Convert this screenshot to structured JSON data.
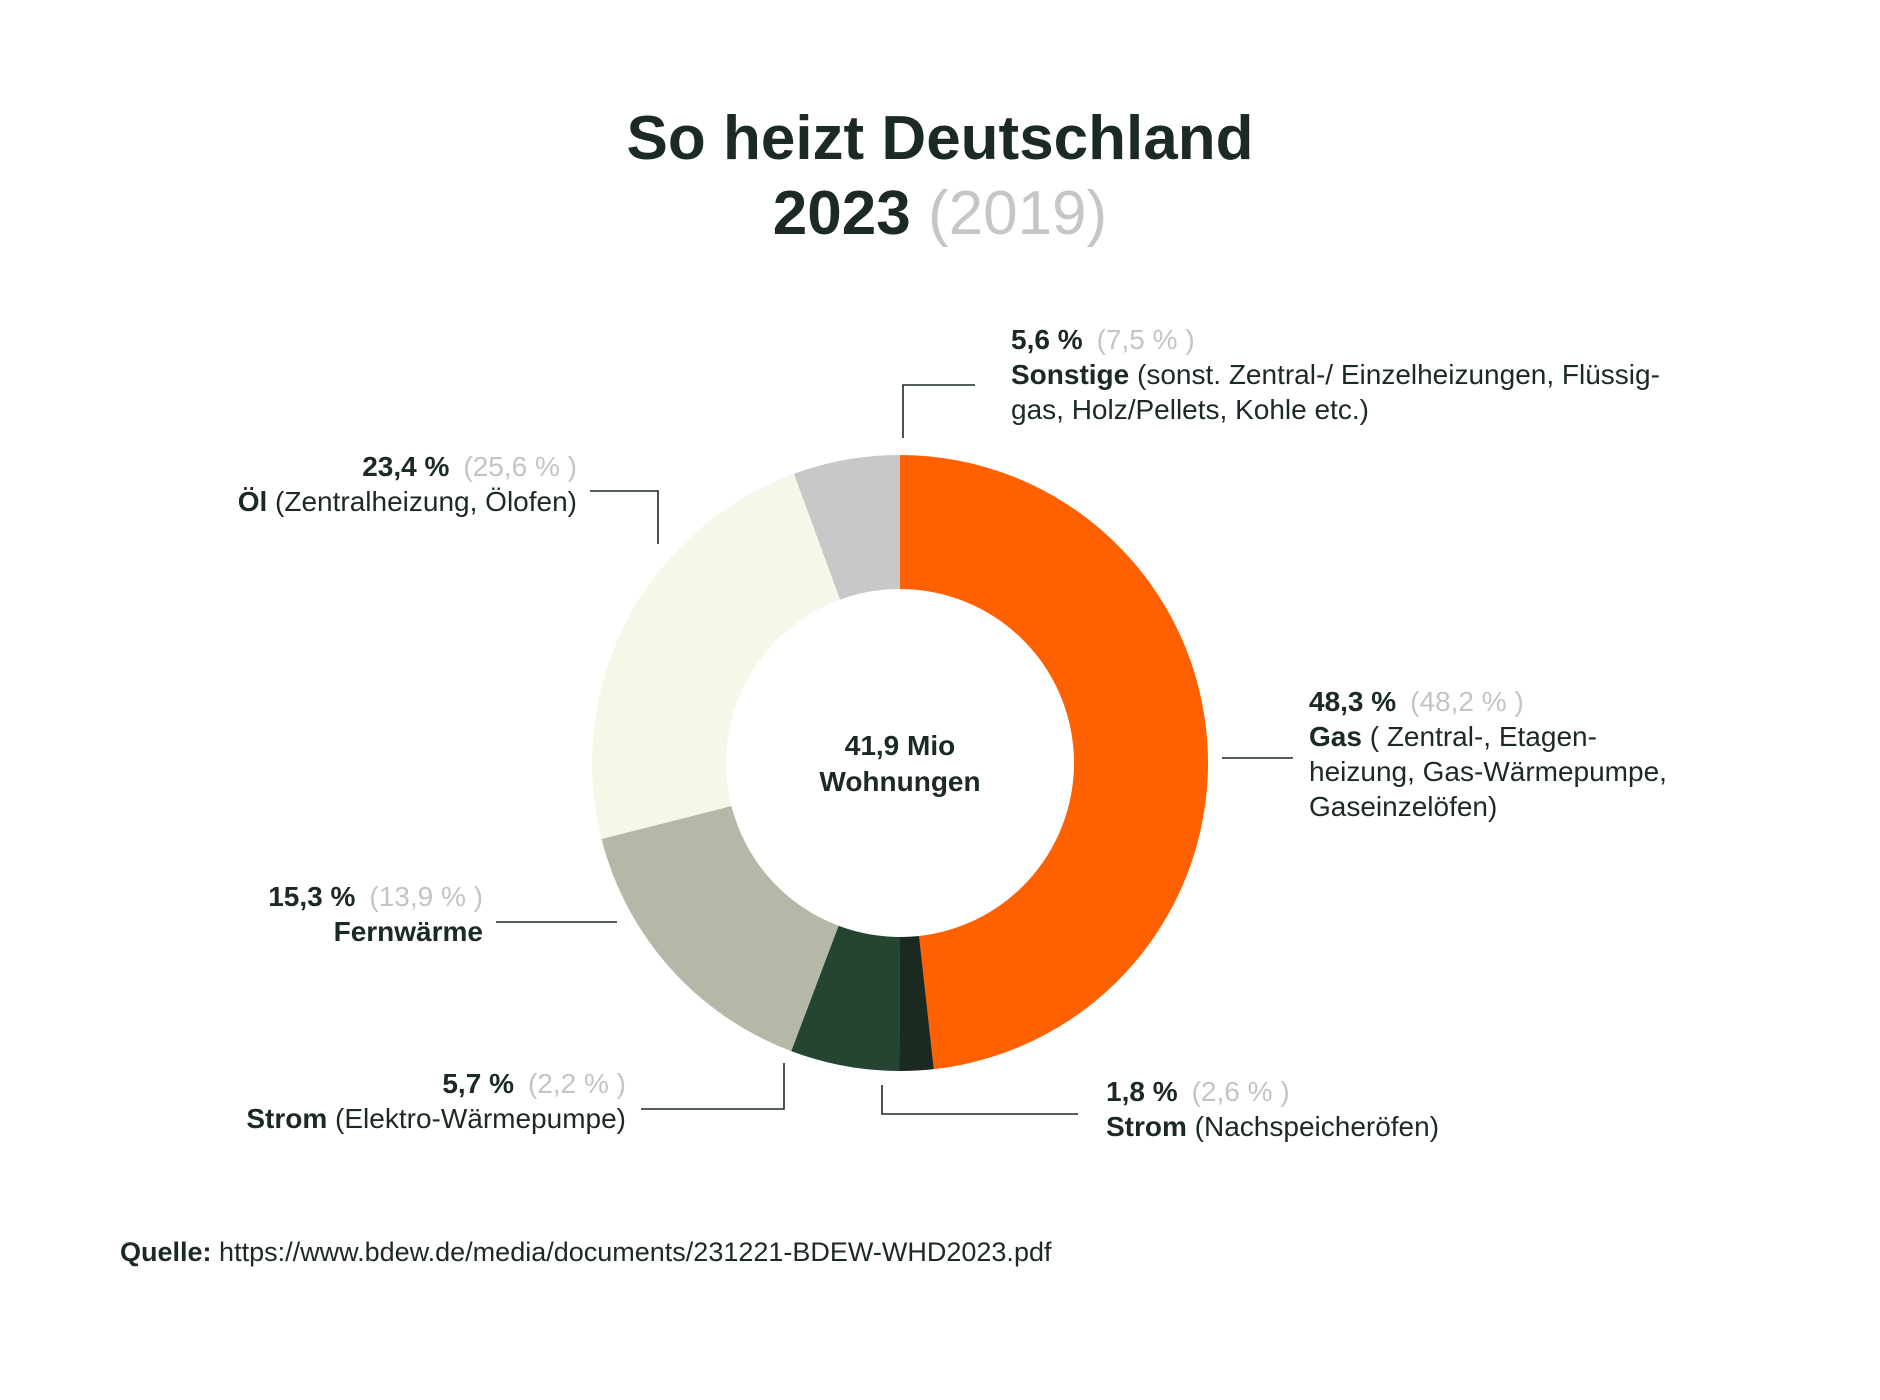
{
  "title": {
    "line1": "So heizt Deutschland",
    "year": "2023",
    "prev_year": "(2019)"
  },
  "center": {
    "line1": "41,9 Mio",
    "line2": "Wohnungen"
  },
  "source": {
    "label": "Quelle:",
    "url": "https://www.bdew.de/media/documents/231221-BDEW-WHD2023.pdf"
  },
  "chart_data": {
    "type": "pie",
    "donut": true,
    "unit": "%",
    "start_angle_deg": 0,
    "direction": "clockwise",
    "slices": [
      {
        "value": 48.3,
        "prev": 48.2,
        "value_label": "48,3 %",
        "prev_label": "(48,2 % )",
        "name": "Gas",
        "detail_lines": [
          " ( Zentral-, Etagen-",
          "heizung, Gas-Wärmepumpe,",
          "Gaseinzelöfen)"
        ],
        "color": "#ff6000"
      },
      {
        "value": 1.8,
        "prev": 2.6,
        "value_label": "1,8 %",
        "prev_label": "(2,6 % )",
        "name": "Strom",
        "detail_lines": [
          " (Nachspeicheröfen)"
        ],
        "color": "#1b2a20"
      },
      {
        "value": 5.7,
        "prev": 2.2,
        "value_label": "5,7 %",
        "prev_label": "(2,2 % )",
        "name": "Strom",
        "detail_lines": [
          " (Elektro-Wärmepumpe)"
        ],
        "color": "#234532"
      },
      {
        "value": 15.3,
        "prev": 13.9,
        "value_label": "15,3 %",
        "prev_label": "(13,9 % )",
        "name": "Fernwärme",
        "detail_lines": [
          ""
        ],
        "color": "#b5b8a6"
      },
      {
        "value": 23.4,
        "prev": 25.6,
        "value_label": "23,4 %",
        "prev_label": "(25,6 % )",
        "name": "Öl",
        "detail_lines": [
          " (Zentralheizung, Ölofen)"
        ],
        "color": "#f5f7e9"
      },
      {
        "value": 5.6,
        "prev": 7.5,
        "value_label": "5,6 %",
        "prev_label": "(7,5 % )",
        "name": "Sonstige",
        "detail_lines": [
          " (sonst. Zentral-/ Einzelheizungen, Flüssig-",
          "gas, Holz/Pellets, Kohle etc.)"
        ],
        "color": "#c8c8c8"
      }
    ]
  }
}
